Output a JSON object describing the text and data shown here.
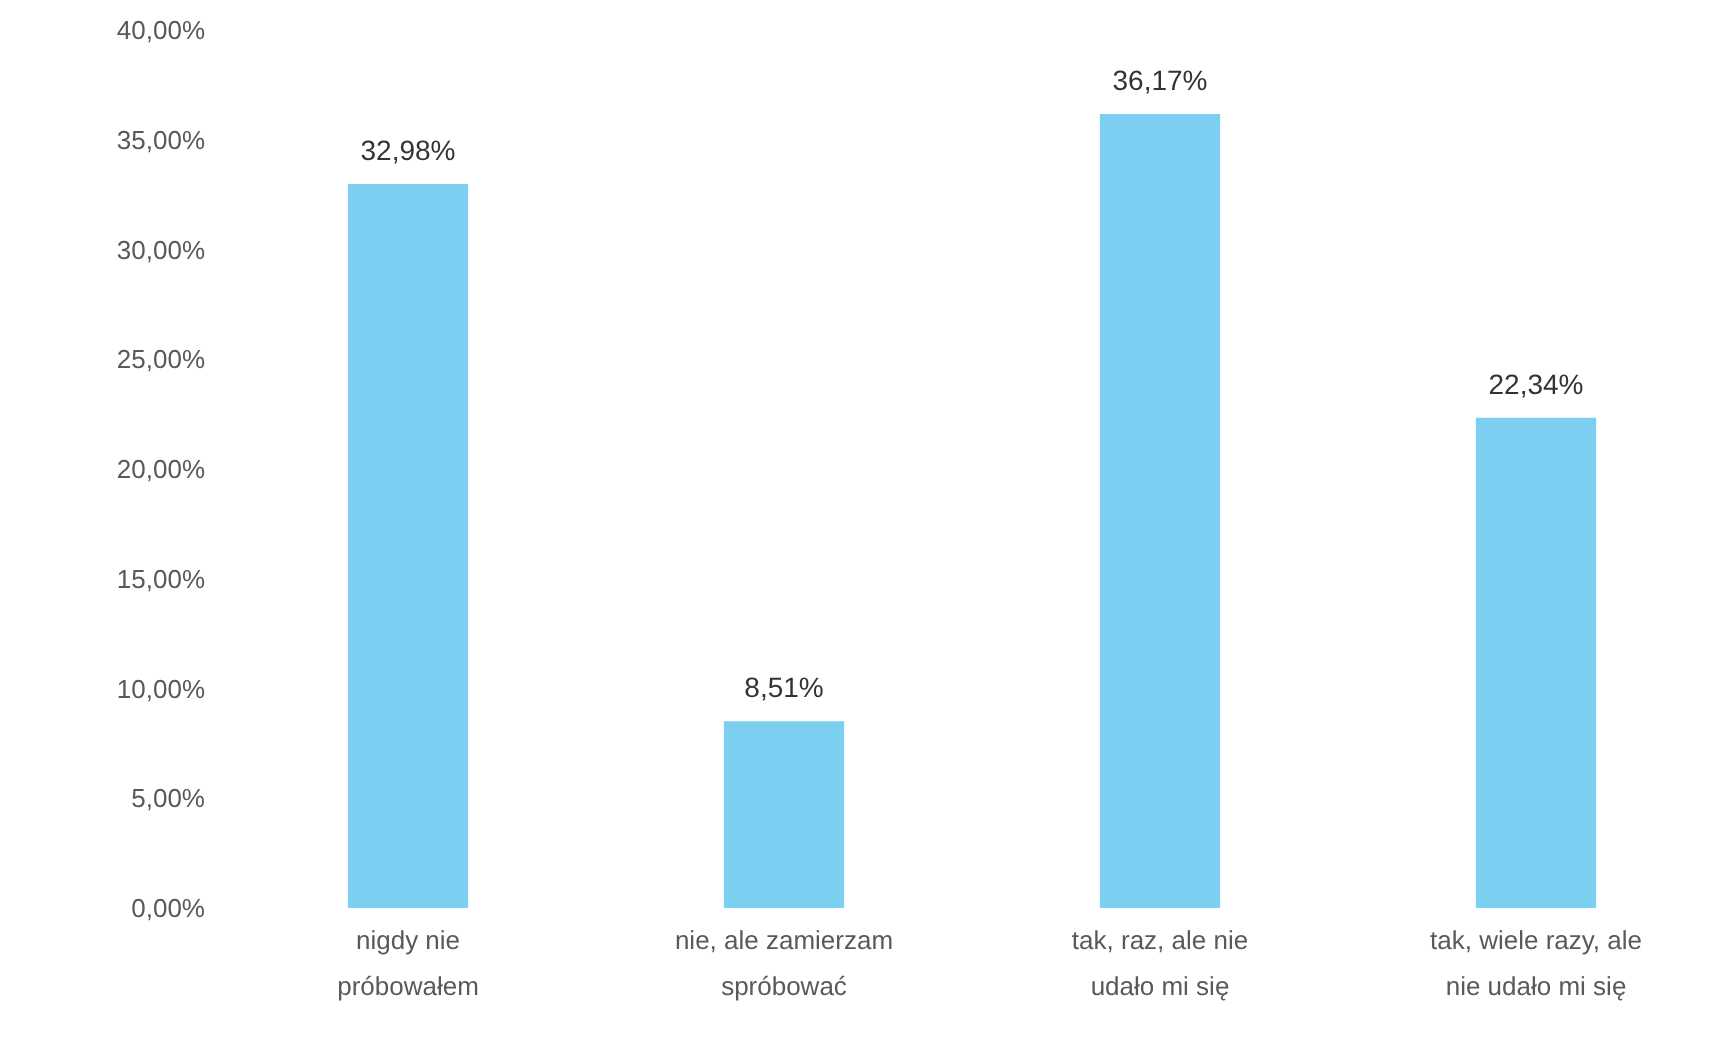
{
  "chart_data": {
    "type": "bar",
    "categories": [
      "nigdy nie próbowałem",
      "nie, ale zamierzam spróbować",
      "tak, raz, ale nie udało mi się",
      "tak, wiele razy, ale nie udało mi się"
    ],
    "series": [
      {
        "color": "#7ccff0",
        "values": [
          32.98,
          8.51,
          36.17,
          22.34
        ]
      }
    ],
    "value_labels": [
      "32,98%",
      "8,51%",
      "36,17%",
      "22,34%"
    ],
    "ylim": [
      0,
      40
    ],
    "yticks": [
      {
        "value": 0,
        "label": "0,00%"
      },
      {
        "value": 5,
        "label": "5,00%"
      },
      {
        "value": 10,
        "label": "10,00%"
      },
      {
        "value": 15,
        "label": "15,00%"
      },
      {
        "value": 20,
        "label": "20,00%"
      },
      {
        "value": 25,
        "label": "25,00%"
      },
      {
        "value": 30,
        "label": "30,00%"
      },
      {
        "value": 35,
        "label": "35,00%"
      },
      {
        "value": 40,
        "label": "40,00%"
      }
    ],
    "grid": false
  }
}
